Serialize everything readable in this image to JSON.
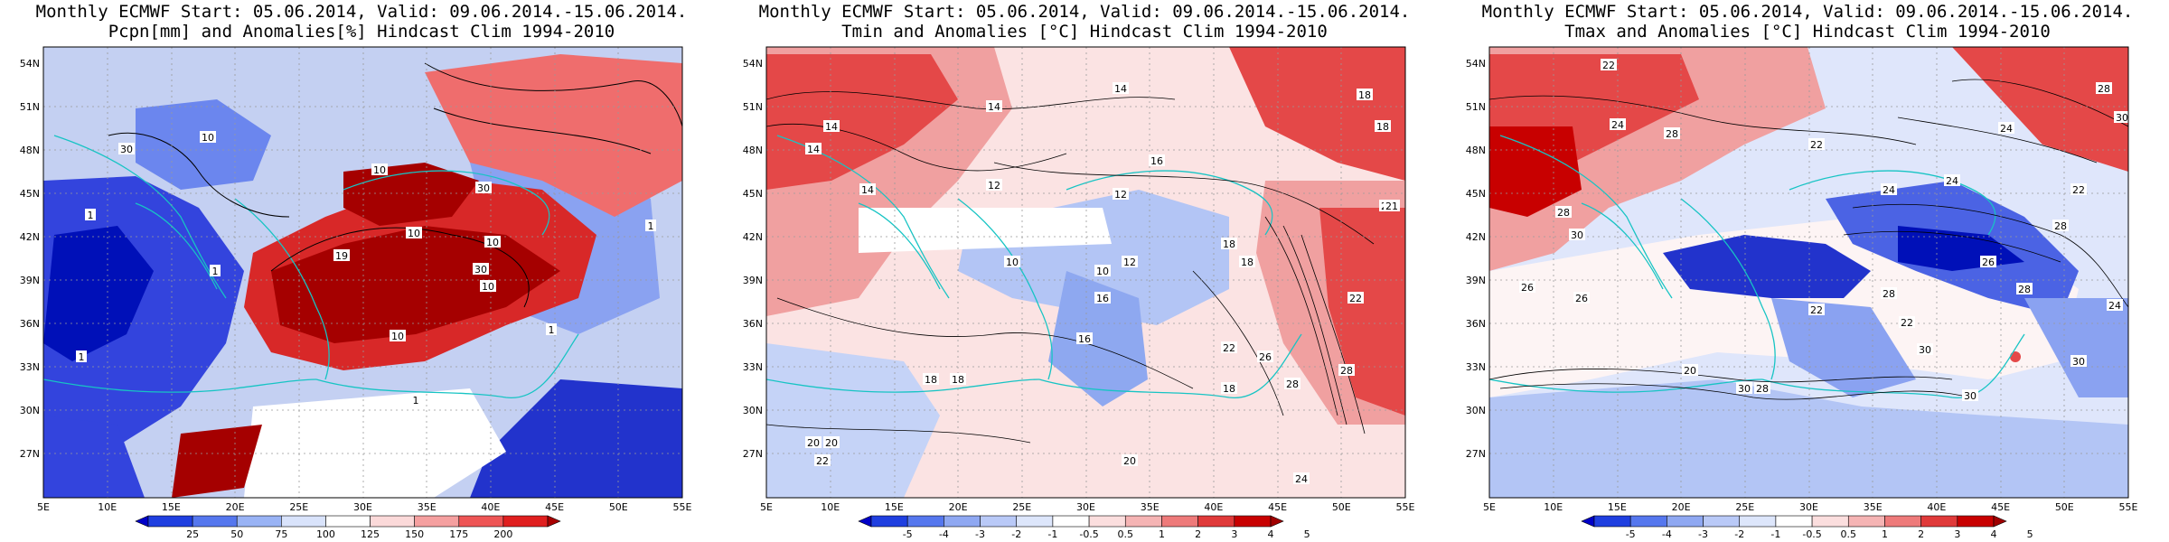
{
  "panels": [
    {
      "title_line1": "Monthly ECMWF Start: 05.06.2014, Valid: 09.06.2014.-15.06.2014.",
      "title_line2": "Pcpn[mm] and Anomalies[%] Hindcast Clim 1994-2010",
      "variable": "Pcpn",
      "colorbar_labels": [
        "25",
        "50",
        "75",
        "100",
        "125",
        "150",
        "175",
        "200"
      ],
      "colorbar_colors": [
        "#0000c8",
        "#1f3fe0",
        "#5577ee",
        "#99b3f5",
        "#d9e3fb",
        "#ffffff",
        "#fbd9d9",
        "#f5a0a0",
        "#ee5555",
        "#e01f1f",
        "#a80000"
      ],
      "contour_labels": [
        "30",
        "10",
        "1",
        "10",
        "30",
        "10",
        "19",
        "10",
        "30",
        "10",
        "10",
        "1",
        "1",
        "1",
        "1",
        "1",
        "1",
        "1"
      ]
    },
    {
      "title_line1": "Monthly ECMWF Start: 05.06.2014, Valid: 09.06.2014.-15.06.2014.",
      "title_line2": "Tmin and Anomalies [°C] Hindcast Clim 1994-2010",
      "variable": "Tmin",
      "colorbar_labels": [
        "-5",
        "-4",
        "-3",
        "-2",
        "-1",
        "-0.5",
        "0.5",
        "1",
        "2",
        "3",
        "4",
        "5"
      ],
      "colorbar_colors": [
        "#0000c8",
        "#1f3fe0",
        "#5577ee",
        "#8fa8f2",
        "#b9c9f7",
        "#dde6fb",
        "#ffffff",
        "#fbdede",
        "#f5b4b4",
        "#ee7a7a",
        "#e03a3a",
        "#c80000",
        "#a00000"
      ],
      "contour_labels": [
        "14",
        "14",
        "18",
        "18",
        "14",
        "20",
        "16",
        "14",
        "12",
        "10",
        "16",
        "16",
        "18",
        "18",
        "12",
        "20",
        "18",
        "20",
        "28",
        "26",
        "28",
        "22",
        "24",
        "18",
        "20",
        "22",
        "21",
        "22",
        "14",
        "10",
        "12",
        "18"
      ]
    },
    {
      "title_line1": "Monthly ECMWF Start: 05.06.2014, Valid: 09.06.2014.-15.06.2014.",
      "title_line2": "Tmax and Anomalies [°C] Hindcast Clim 1994-2010",
      "variable": "Tmax",
      "colorbar_labels": [
        "-5",
        "-4",
        "-3",
        "-2",
        "-1",
        "-0.5",
        "0.5",
        "1",
        "2",
        "3",
        "4",
        "5"
      ],
      "colorbar_colors": [
        "#0000c8",
        "#1f3fe0",
        "#5577ee",
        "#8fa8f2",
        "#b9c9f7",
        "#dde6fb",
        "#ffffff",
        "#fbdede",
        "#f5b4b4",
        "#ee7a7a",
        "#e03a3a",
        "#c80000",
        "#a00000"
      ],
      "contour_labels": [
        "22",
        "24",
        "24",
        "28",
        "28",
        "30",
        "22",
        "24",
        "28",
        "30",
        "26",
        "22",
        "28",
        "26",
        "22",
        "30",
        "28",
        "20",
        "30",
        "30",
        "24",
        "26",
        "24",
        "28",
        "30",
        "22",
        "28"
      ]
    }
  ],
  "map": {
    "lat_ticks": [
      "54N",
      "51N",
      "48N",
      "45N",
      "42N",
      "39N",
      "36N",
      "33N",
      "30N",
      "27N"
    ],
    "lon_ticks": [
      "5E",
      "10E",
      "15E",
      "20E",
      "25E",
      "30E",
      "35E",
      "40E",
      "45E",
      "50E",
      "55E"
    ]
  }
}
